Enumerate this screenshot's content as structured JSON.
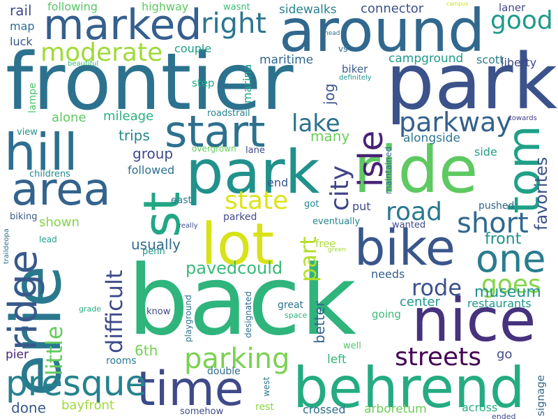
{
  "words": [
    {
      "text": "back",
      "color": "#2fb47c",
      "rotated": false
    },
    {
      "text": "frontier",
      "color": "#2c728e",
      "rotated": false
    },
    {
      "text": "park",
      "color": "#3b528b",
      "rotated": false
    },
    {
      "text": "ride",
      "color": "#5ec962",
      "rotated": false
    },
    {
      "text": "around",
      "color": "#31688e",
      "rotated": false
    },
    {
      "text": "park",
      "color": "#21918c",
      "rotated": false
    },
    {
      "text": "erie",
      "color": "#2a788e",
      "rotated": true
    },
    {
      "text": "nice",
      "color": "#46327e",
      "rotated": false
    },
    {
      "text": "behrend",
      "color": "#25ab82",
      "rotated": false
    },
    {
      "text": "lot",
      "color": "#d8e219",
      "rotated": false
    },
    {
      "text": "time",
      "color": "#3e4a89",
      "rotated": false
    },
    {
      "text": "bike",
      "color": "#39568c",
      "rotated": false
    },
    {
      "text": "marked",
      "color": "#355f8d",
      "rotated": false
    },
    {
      "text": "hill",
      "color": "#2e6e8e",
      "rotated": false
    },
    {
      "text": "area",
      "color": "#33638d",
      "rotated": false
    },
    {
      "text": "start",
      "color": "#2d708e",
      "rotated": false
    },
    {
      "text": "st",
      "color": "#22a785",
      "rotated": true
    },
    {
      "text": "ridge",
      "color": "#38598c",
      "rotated": true
    },
    {
      "text": "tom",
      "color": "#1fa187",
      "rotated": true
    },
    {
      "text": "one",
      "color": "#287d8e",
      "rotated": false
    },
    {
      "text": "presque",
      "color": "#26828e",
      "rotated": false
    },
    {
      "text": "right",
      "color": "#2b758e",
      "rotated": false
    },
    {
      "text": "isle",
      "color": "#482173",
      "rotated": true
    },
    {
      "text": "moderate",
      "color": "#a0da39",
      "rotated": false
    },
    {
      "text": "parkway",
      "color": "#34618d",
      "rotated": false
    },
    {
      "text": "state",
      "color": "#dde318",
      "rotated": false
    },
    {
      "text": "road",
      "color": "#2a788e",
      "rotated": false
    },
    {
      "text": "short",
      "color": "#31688e",
      "rotated": false
    },
    {
      "text": "parking",
      "color": "#7ad151",
      "rotated": false
    },
    {
      "text": "streets",
      "color": "#440154",
      "rotated": false
    },
    {
      "text": "good",
      "color": "#1f9a8a",
      "rotated": false
    },
    {
      "text": "lake",
      "color": "#2c728e",
      "rotated": false
    },
    {
      "text": "city",
      "color": "#414487",
      "rotated": true
    },
    {
      "text": "part",
      "color": "#b5de2b",
      "rotated": true
    },
    {
      "text": "goes",
      "color": "#86d549",
      "rotated": false
    },
    {
      "text": "rode",
      "color": "#3b528b",
      "rotated": false
    },
    {
      "text": "little",
      "color": "#65cb5e",
      "rotated": true
    },
    {
      "text": "difficult",
      "color": "#3e4a89",
      "rotated": true
    },
    {
      "text": "pavedcould",
      "color": "#3aba76",
      "rotated": false
    },
    {
      "text": "favorites",
      "color": "#3b528b",
      "rotated": true
    },
    {
      "text": "museum",
      "color": "#20928c",
      "rotated": false
    },
    {
      "text": "usually",
      "color": "#2f6c8e",
      "rotated": false
    },
    {
      "text": "front",
      "color": "#21918c",
      "rotated": false
    },
    {
      "text": "better",
      "color": "#33638d",
      "rotated": true
    },
    {
      "text": "alone",
      "color": "#5ec962",
      "rotated": false
    },
    {
      "text": "mileage",
      "color": "#2ab07f",
      "rotated": false
    },
    {
      "text": "trips",
      "color": "#24868e",
      "rotated": false
    },
    {
      "text": "group",
      "color": "#3e4989",
      "rotated": false
    },
    {
      "text": "followed",
      "color": "#2d708e",
      "rotated": false
    },
    {
      "text": "rail",
      "color": "#3e4a89",
      "rotated": false
    },
    {
      "text": "map",
      "color": "#2e6e8e",
      "rotated": false
    },
    {
      "text": "luck",
      "color": "#39568c",
      "rotated": false
    },
    {
      "text": "following",
      "color": "#56c667",
      "rotated": false
    },
    {
      "text": "highway",
      "color": "#5ec962",
      "rotated": false
    },
    {
      "text": "wasnt",
      "color": "#3aba76",
      "rotated": false
    },
    {
      "text": "campus",
      "color": "#c8e020",
      "rotated": false
    },
    {
      "text": "sidewalks",
      "color": "#26818e",
      "rotated": false
    },
    {
      "text": "connector",
      "color": "#3b528b",
      "rotated": false
    },
    {
      "text": "laner",
      "color": "#3e4a89",
      "rotated": false
    },
    {
      "text": "liberty",
      "color": "#3e4989",
      "rotated": false
    },
    {
      "text": "couple",
      "color": "#1f9e89",
      "rotated": false
    },
    {
      "text": "maritime",
      "color": "#31688e",
      "rotated": false
    },
    {
      "text": "campground",
      "color": "#1f9a8a",
      "rotated": false
    },
    {
      "text": "scott",
      "color": "#287d8e",
      "rotated": false
    },
    {
      "text": "marina",
      "color": "#20a386",
      "rotated": true
    },
    {
      "text": "biker",
      "color": "#38598c",
      "rotated": false
    },
    {
      "text": "definitely",
      "color": "#1f948c",
      "rotated": false
    },
    {
      "text": "step",
      "color": "#22a785",
      "rotated": false
    },
    {
      "text": "beautiful",
      "color": "#3aba76",
      "rotated": false
    },
    {
      "text": "head",
      "color": "#2d708e",
      "rotated": false
    },
    {
      "text": "vs",
      "color": "#2c738e",
      "rotated": false
    },
    {
      "text": "jog",
      "color": "#3b528b",
      "rotated": true
    },
    {
      "text": "roadstrail",
      "color": "#25848e",
      "rotated": false
    },
    {
      "text": "towards",
      "color": "#433d84",
      "rotated": false
    },
    {
      "text": "lampe",
      "color": "#4ec36b",
      "rotated": true
    },
    {
      "text": "view",
      "color": "#20928c",
      "rotated": false
    },
    {
      "text": "childrens",
      "color": "#23898e",
      "rotated": false
    },
    {
      "text": "overgrown",
      "color": "#65cb5e",
      "rotated": false
    },
    {
      "text": "lane",
      "color": "#3e4a89",
      "rotated": false
    },
    {
      "text": "alongside",
      "color": "#2b758e",
      "rotated": false
    },
    {
      "text": "many",
      "color": "#6ccd5a",
      "rotated": false
    },
    {
      "text": "maintained",
      "color": "#31688e",
      "rotated": true
    },
    {
      "text": "side",
      "color": "#1fa088",
      "rotated": false
    },
    {
      "text": "end",
      "color": "#39568c",
      "rotated": false
    },
    {
      "text": "east",
      "color": "#2a788e",
      "rotated": false
    },
    {
      "text": "got",
      "color": "#25848e",
      "rotated": false
    },
    {
      "text": "put",
      "color": "#3e4a89",
      "rotated": false
    },
    {
      "text": "pushed",
      "color": "#32658e",
      "rotated": false
    },
    {
      "text": "biking",
      "color": "#38598c",
      "rotated": false
    },
    {
      "text": "parked",
      "color": "#3e4a89",
      "rotated": false
    },
    {
      "text": "shown",
      "color": "#84d44b",
      "rotated": false
    },
    {
      "text": "eventually",
      "color": "#25848e",
      "rotated": false
    },
    {
      "text": "wanted",
      "color": "#3e4989",
      "rotated": false
    },
    {
      "text": "really",
      "color": "#3b528b",
      "rotated": false
    },
    {
      "text": "traildeopa",
      "color": "#2d708e",
      "rotated": true
    },
    {
      "text": "lead",
      "color": "#1f9e89",
      "rotated": false
    },
    {
      "text": "penn",
      "color": "#21918c",
      "rotated": false
    },
    {
      "text": "free",
      "color": "#addc30",
      "rotated": false
    },
    {
      "text": "green",
      "color": "#a2da37",
      "rotated": false
    },
    {
      "text": "needs",
      "color": "#355f8d",
      "rotated": false
    },
    {
      "text": "playground",
      "color": "#2c728e",
      "rotated": true
    },
    {
      "text": "designated",
      "color": "#2e6e8e",
      "rotated": true
    },
    {
      "text": "center",
      "color": "#1f988b",
      "rotated": false
    },
    {
      "text": "restaurants",
      "color": "#1f978b",
      "rotated": false
    },
    {
      "text": "grade",
      "color": "#27ad81",
      "rotated": false
    },
    {
      "text": "know",
      "color": "#3e4989",
      "rotated": false
    },
    {
      "text": "great",
      "color": "#2c728e",
      "rotated": false
    },
    {
      "text": "space",
      "color": "#2db27d",
      "rotated": false
    },
    {
      "text": "going",
      "color": "#3aba76",
      "rotated": false
    },
    {
      "text": "6th",
      "color": "#75d054",
      "rotated": false
    },
    {
      "text": "pier",
      "color": "#482475",
      "rotated": false
    },
    {
      "text": "rooms",
      "color": "#2a788e",
      "rotated": false
    },
    {
      "text": "well",
      "color": "#4ec36b",
      "rotated": false
    },
    {
      "text": "go",
      "color": "#3e4a89",
      "rotated": false
    },
    {
      "text": "left",
      "color": "#32b67a",
      "rotated": false
    },
    {
      "text": "double",
      "color": "#2e6e8e",
      "rotated": false
    },
    {
      "text": "west",
      "color": "#2a788e",
      "rotated": true
    },
    {
      "text": "signage",
      "color": "#31688e",
      "rotated": true
    },
    {
      "text": "done",
      "color": "#38598c",
      "rotated": false
    },
    {
      "text": "bayfront",
      "color": "#9fda3a",
      "rotated": false
    },
    {
      "text": "rest",
      "color": "#8bd646",
      "rotated": false
    },
    {
      "text": "crossed",
      "color": "#2e6e8e",
      "rotated": false
    },
    {
      "text": "arboretum",
      "color": "#6ccd5a",
      "rotated": false
    },
    {
      "text": "across",
      "color": "#27ad81",
      "rotated": false
    },
    {
      "text": "ended",
      "color": "#3e4989",
      "rotated": false
    },
    {
      "text": "somehow",
      "color": "#3e4a89",
      "rotated": false
    }
  ]
}
